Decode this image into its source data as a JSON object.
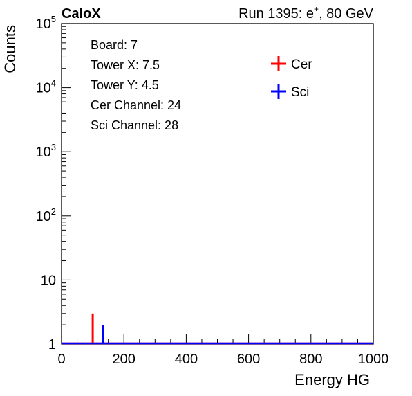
{
  "header": {
    "brand": "CaloX",
    "run_label": "Run 1395: e",
    "run_sup": "+",
    "run_suffix": ", 80 GeV"
  },
  "chart_data": {
    "type": "histogram",
    "xlabel": "Energy HG",
    "ylabel": "Counts",
    "xlim": [
      0,
      1000
    ],
    "ylim": [
      1,
      100000
    ],
    "yscale": "log",
    "x_ticks": [
      "0",
      "200",
      "400",
      "600",
      "800",
      "1000"
    ],
    "y_ticks": [
      {
        "value": 1,
        "base": "1",
        "exp": ""
      },
      {
        "value": 10,
        "base": "10",
        "exp": ""
      },
      {
        "value": 100,
        "base": "10",
        "exp": "2"
      },
      {
        "value": 1000,
        "base": "10",
        "exp": "3"
      },
      {
        "value": 10000,
        "base": "10",
        "exp": "4"
      },
      {
        "value": 100000,
        "base": "10",
        "exp": "5"
      }
    ],
    "info_lines": [
      "Board: 7",
      "Tower X: 7.5",
      "Tower Y: 4.5",
      "Cer Channel: 24",
      "Sci Channel: 28"
    ],
    "legend_position": "top-right",
    "series": [
      {
        "name": "Cer",
        "color": "#ff0000",
        "x": 100,
        "y": 3
      },
      {
        "name": "Sci",
        "color": "#0000ff",
        "x": 132,
        "y": 2
      }
    ]
  }
}
